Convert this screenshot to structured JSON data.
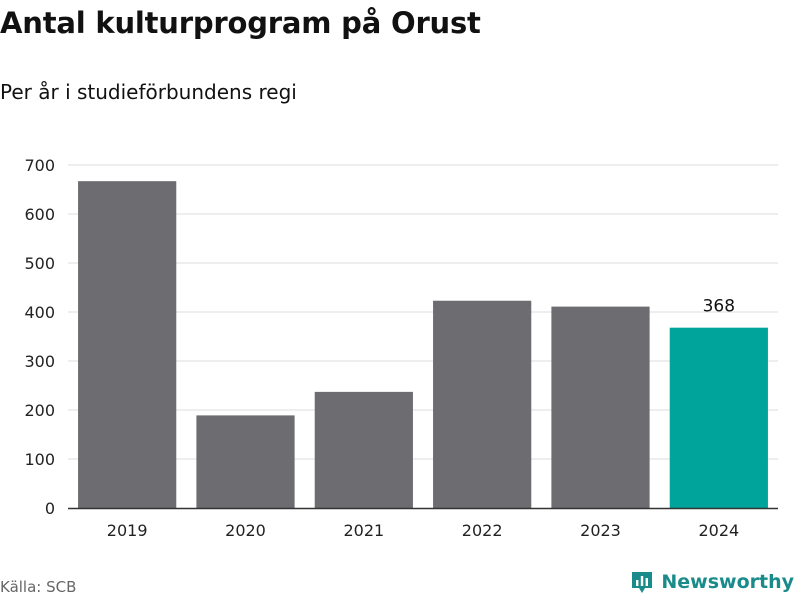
{
  "header": {
    "title": "Antal kulturprogram på Orust",
    "subtitle": "Per år i studieförbundens regi"
  },
  "footer": {
    "source": "Källa: SCB",
    "brand": "Newsworthy",
    "brand_icon": "bar-chart-pin-icon"
  },
  "colors": {
    "bar_default": "#6d6c71",
    "bar_highlight": "#00a49a",
    "brand": "#1a8b8b"
  },
  "chart_data": {
    "type": "bar",
    "title": "Antal kulturprogram på Orust",
    "subtitle": "Per år i studieförbundens regi",
    "categories": [
      "2019",
      "2020",
      "2021",
      "2022",
      "2023",
      "2024"
    ],
    "values": [
      667,
      189,
      237,
      423,
      411,
      368
    ],
    "highlight_index": 5,
    "data_labels": [
      {
        "index": 5,
        "text": "368"
      }
    ],
    "xlabel": "",
    "ylabel": "",
    "ylim": [
      0,
      700
    ],
    "yticks": [
      0,
      100,
      200,
      300,
      400,
      500,
      600,
      700
    ],
    "grid": true,
    "legend": "none"
  }
}
